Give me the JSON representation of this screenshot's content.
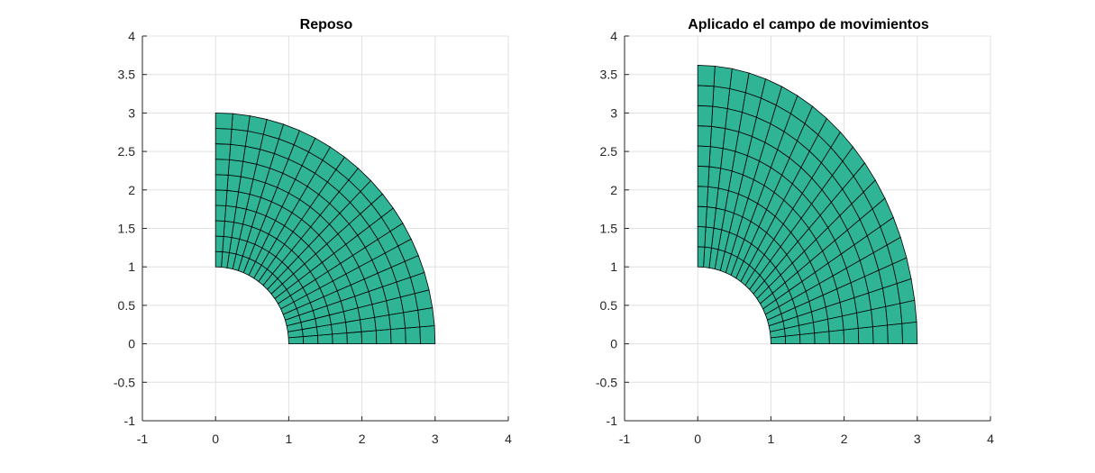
{
  "figure": {
    "background": "#ffffff",
    "mesh": {
      "face_color": "#2fb596",
      "edge_color": "#000000",
      "grid_color": "#e0e0e0",
      "axis_color": "#262626"
    },
    "panels": [
      {
        "title": "Reposo",
        "x_ticks": [
          "-1",
          "0",
          "1",
          "2",
          "3",
          "4"
        ],
        "y_ticks": [
          "-1",
          "-0.5",
          "0",
          "0.5",
          "1",
          "1.5",
          "2",
          "2.5",
          "3",
          "3.5",
          "4"
        ],
        "xlim": [
          -1,
          4
        ],
        "ylim": [
          -1,
          4
        ],
        "grid": true,
        "mesh": {
          "inner_radius": 1,
          "outer_radius_x": 3,
          "outer_radius_y": 3,
          "radial_divisions": 10,
          "angular_divisions": 20
        }
      },
      {
        "title": "Aplicado el campo de movimientos",
        "x_ticks": [
          "-1",
          "0",
          "1",
          "2",
          "3",
          "4"
        ],
        "y_ticks": [
          "-1",
          "-0.5",
          "0",
          "0.5",
          "1",
          "1.5",
          "2",
          "2.5",
          "3",
          "3.5",
          "4"
        ],
        "xlim": [
          -1,
          4
        ],
        "ylim": [
          -1,
          4
        ],
        "grid": true,
        "mesh": {
          "inner_radius": 1,
          "outer_radius_x": 3,
          "outer_radius_y": 3.62,
          "radial_divisions": 10,
          "angular_divisions": 20
        }
      }
    ]
  }
}
